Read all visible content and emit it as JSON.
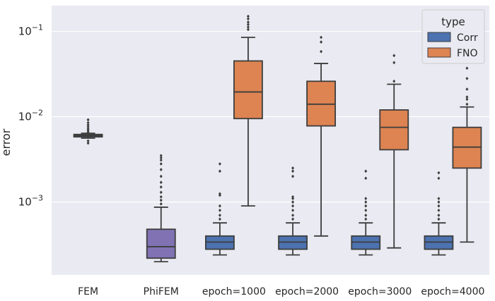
{
  "chart_data": {
    "type": "boxplot",
    "ylabel": "error",
    "yscale": "log",
    "ylim": [
      0.00014,
      0.2
    ],
    "yticks": [
      {
        "value": 0.1,
        "base": "10",
        "exp": "−1"
      },
      {
        "value": 0.01,
        "base": "10",
        "exp": "−2"
      },
      {
        "value": 0.001,
        "base": "10",
        "exp": "−3"
      }
    ],
    "grid": true,
    "legend": {
      "title": "type",
      "position": "top-right",
      "entries": [
        "Corr",
        "FNO"
      ]
    },
    "categories": [
      "FEM",
      "PhiFEM",
      "epoch=1000",
      "epoch=2000",
      "epoch=3000",
      "epoch=4000"
    ],
    "boxes": [
      {
        "category": "FEM",
        "series": "single",
        "color": "#4c72b0",
        "q1": 0.0058,
        "median": 0.006,
        "q3": 0.0062,
        "whisker_low": 0.0056,
        "whisker_high": 0.0064,
        "outliers": [
          0.0049,
          0.0052,
          0.0066,
          0.0069,
          0.0072,
          0.0076,
          0.008,
          0.0085,
          0.0092
        ]
      },
      {
        "category": "PhiFEM",
        "series": "single",
        "color": "#8172b3",
        "q1": 0.00022,
        "median": 0.0003,
        "q3": 0.00048,
        "whisker_low": 0.0002,
        "whisker_high": 0.00087,
        "outliers": [
          0.00095,
          0.00105,
          0.00115,
          0.0013,
          0.0015,
          0.0017,
          0.002,
          0.0024,
          0.0028,
          0.0031,
          0.0033,
          0.0035
        ]
      },
      {
        "category": "epoch=1000",
        "series": "Corr",
        "color": "#4c72b0",
        "q1": 0.00028,
        "median": 0.00034,
        "q3": 0.0004,
        "whisker_low": 0.00024,
        "whisker_high": 0.00057,
        "outliers": [
          0.00063,
          0.0007,
          0.0008,
          0.0009,
          0.0012,
          0.00125,
          0.0023,
          0.0028
        ]
      },
      {
        "category": "epoch=1000",
        "series": "FNO",
        "color": "#dd8452",
        "q1": 0.0095,
        "median": 0.0195,
        "q3": 0.045,
        "whisker_low": 0.0009,
        "whisker_high": 0.085,
        "outliers": [
          0.105,
          0.112,
          0.12,
          0.128,
          0.14,
          0.15
        ]
      },
      {
        "category": "epoch=2000",
        "series": "Corr",
        "color": "#4c72b0",
        "q1": 0.00028,
        "median": 0.00034,
        "q3": 0.0004,
        "whisker_low": 0.00024,
        "whisker_high": 0.00057,
        "outliers": [
          0.00063,
          0.0007,
          0.0008,
          0.0009,
          0.001,
          0.0011,
          0.00115,
          0.002,
          0.0023,
          0.0025
        ]
      },
      {
        "category": "epoch=2000",
        "series": "FNO",
        "color": "#dd8452",
        "q1": 0.0078,
        "median": 0.014,
        "q3": 0.026,
        "whisker_low": 0.0004,
        "whisker_high": 0.042,
        "outliers": [
          0.058,
          0.075,
          0.085
        ]
      },
      {
        "category": "epoch=3000",
        "series": "Corr",
        "color": "#4c72b0",
        "q1": 0.00028,
        "median": 0.00034,
        "q3": 0.0004,
        "whisker_low": 0.00024,
        "whisker_high": 0.00057,
        "outliers": [
          0.00063,
          0.0007,
          0.0008,
          0.0009,
          0.001,
          0.0011,
          0.0019,
          0.0023
        ]
      },
      {
        "category": "epoch=3000",
        "series": "FNO",
        "color": "#dd8452",
        "q1": 0.0041,
        "median": 0.0075,
        "q3": 0.012,
        "whisker_low": 0.00029,
        "whisker_high": 0.024,
        "outliers": [
          0.026,
          0.043,
          0.052
        ]
      },
      {
        "category": "epoch=4000",
        "series": "Corr",
        "color": "#4c72b0",
        "q1": 0.00028,
        "median": 0.00034,
        "q3": 0.0004,
        "whisker_low": 0.00024,
        "whisker_high": 0.00057,
        "outliers": [
          0.00063,
          0.0007,
          0.0008,
          0.0009,
          0.001,
          0.0011,
          0.0019,
          0.0022
        ]
      },
      {
        "category": "epoch=4000",
        "series": "FNO",
        "color": "#dd8452",
        "q1": 0.0025,
        "median": 0.0044,
        "q3": 0.0075,
        "whisker_low": 0.00034,
        "whisker_high": 0.013,
        "outliers": [
          0.014,
          0.016,
          0.017,
          0.021,
          0.028,
          0.037
        ]
      }
    ],
    "colors": {
      "background": "#eaeaf2",
      "grid": "#ffffff",
      "Corr": "#4c72b0",
      "FNO": "#dd8452",
      "PhiFEM": "#8172b3",
      "whisker": "#3d3d3d"
    }
  }
}
